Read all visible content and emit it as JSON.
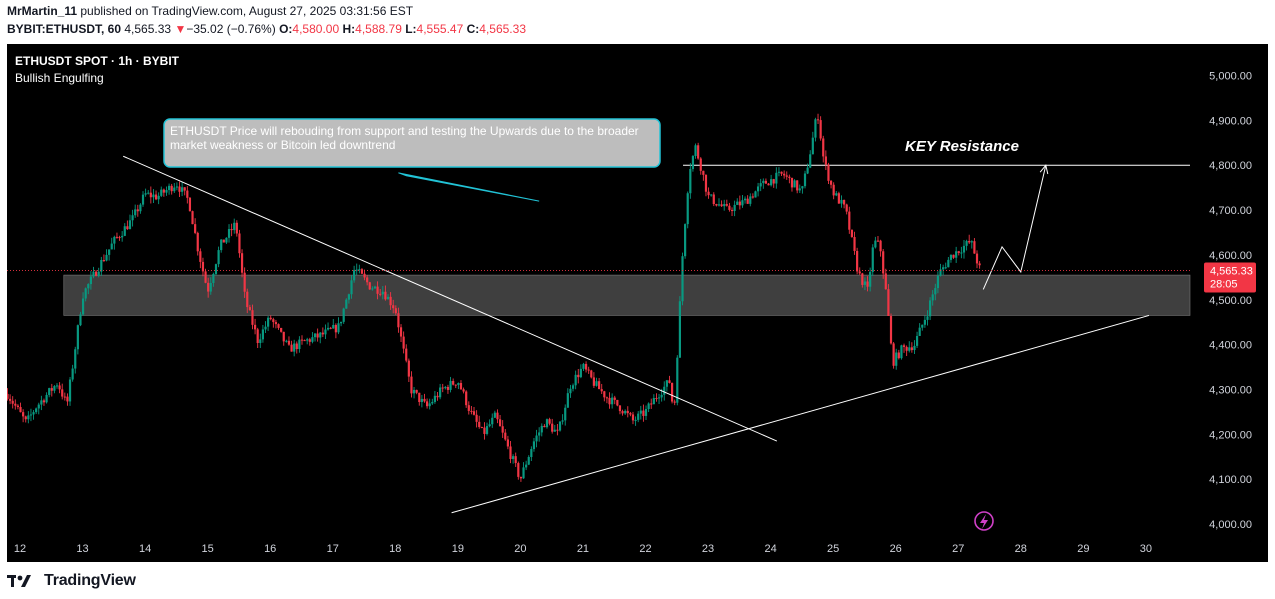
{
  "header": {
    "author": "MrMartin_11",
    "published_text": "published on TradingView.com, August 27, 2025 03:31:56 EST",
    "symbol_full": "BYBIT:ETHUSDT, 60",
    "last_price": "4,565.33",
    "change_arrow": "▼",
    "change": "−35.02 (−0.76%)",
    "o_label": "O:",
    "o_value": "4,580.00",
    "h_label": "H:",
    "h_value": "4,588.79",
    "l_label": "L:",
    "l_value": "4,555.47",
    "c_label": "C:",
    "c_value": "4,565.33"
  },
  "legend": {
    "symbol_title": "ETHUSDT SPOT · 1h · BYBIT",
    "indicator": "Bullish Engulfing"
  },
  "price_axis": {
    "ticks": [
      "5,000.00",
      "4,900.00",
      "4,800.00",
      "4,700.00",
      "4,600.00",
      "4,500.00",
      "4,400.00",
      "4,300.00",
      "4,200.00",
      "4,100.00",
      "4,000.00"
    ],
    "current_price_label": "4,565.33",
    "countdown_label": "28:05"
  },
  "time_axis": {
    "ticks": [
      "12",
      "13",
      "14",
      "15",
      "16",
      "17",
      "18",
      "19",
      "20",
      "21",
      "22",
      "23",
      "24",
      "25",
      "26",
      "27",
      "28",
      "29",
      "30"
    ]
  },
  "annotations": {
    "callout_text": "ETHUSDT Price will rebouding from support and testing the Upwards due to the broader market weakness or Bitcoin led downtrend",
    "key_resistance": "KEY Resistance"
  },
  "footer": {
    "brand": "TradingView"
  },
  "colors": {
    "up": "#089981",
    "down": "#f23645",
    "background": "#000000",
    "axis_text": "#d1d4dc",
    "accent_callout_border": "#22c3d6",
    "support_zone": "#5a5a5a"
  },
  "chart_data": {
    "type": "candlestick",
    "title": "ETHUSDT SPOT · 1h · BYBIT",
    "ylim": [
      3980,
      5030
    ],
    "x_unit": "days of August 2025",
    "xlim": [
      11.8,
      31.7
    ],
    "price_ticks": [
      5000,
      4900,
      4800,
      4700,
      4600,
      4500,
      4400,
      4300,
      4200,
      4100,
      4000
    ],
    "date_ticks": [
      12,
      13,
      14,
      15,
      16,
      17,
      18,
      19,
      20,
      21,
      22,
      23,
      24,
      25,
      26,
      27,
      28,
      29,
      30
    ],
    "last_price": 4565.33,
    "path": [
      [
        11.8,
        4290
      ],
      [
        12.1,
        4225
      ],
      [
        12.25,
        4260
      ],
      [
        12.6,
        4315
      ],
      [
        12.75,
        4265
      ],
      [
        12.85,
        4360
      ],
      [
        13.0,
        4510
      ],
      [
        13.2,
        4560
      ],
      [
        13.5,
        4630
      ],
      [
        13.8,
        4680
      ],
      [
        14.0,
        4735
      ],
      [
        14.2,
        4730
      ],
      [
        14.5,
        4760
      ],
      [
        14.7,
        4720
      ],
      [
        14.85,
        4610
      ],
      [
        15.0,
        4520
      ],
      [
        15.2,
        4620
      ],
      [
        15.45,
        4670
      ],
      [
        15.6,
        4500
      ],
      [
        15.8,
        4410
      ],
      [
        16.0,
        4460
      ],
      [
        16.3,
        4390
      ],
      [
        16.6,
        4410
      ],
      [
        16.8,
        4420
      ],
      [
        17.1,
        4440
      ],
      [
        17.35,
        4570
      ],
      [
        17.6,
        4530
      ],
      [
        17.8,
        4520
      ],
      [
        18.0,
        4480
      ],
      [
        18.25,
        4300
      ],
      [
        18.5,
        4260
      ],
      [
        18.75,
        4300
      ],
      [
        19.0,
        4320
      ],
      [
        19.2,
        4250
      ],
      [
        19.4,
        4200
      ],
      [
        19.6,
        4240
      ],
      [
        19.8,
        4170
      ],
      [
        20.0,
        4100
      ],
      [
        20.2,
        4180
      ],
      [
        20.4,
        4230
      ],
      [
        20.6,
        4200
      ],
      [
        20.8,
        4310
      ],
      [
        21.0,
        4350
      ],
      [
        21.2,
        4310
      ],
      [
        21.4,
        4280
      ],
      [
        21.6,
        4260
      ],
      [
        21.8,
        4230
      ],
      [
        22.0,
        4250
      ],
      [
        22.2,
        4290
      ],
      [
        22.4,
        4320
      ],
      [
        22.45,
        4230
      ],
      [
        22.6,
        4620
      ],
      [
        22.7,
        4790
      ],
      [
        22.8,
        4840
      ],
      [
        22.9,
        4790
      ],
      [
        23.0,
        4730
      ],
      [
        23.3,
        4700
      ],
      [
        23.6,
        4720
      ],
      [
        23.9,
        4760
      ],
      [
        24.2,
        4780
      ],
      [
        24.5,
        4740
      ],
      [
        24.65,
        4840
      ],
      [
        24.75,
        4920
      ],
      [
        24.85,
        4810
      ],
      [
        25.0,
        4740
      ],
      [
        25.2,
        4700
      ],
      [
        25.4,
        4560
      ],
      [
        25.55,
        4520
      ],
      [
        25.65,
        4630
      ],
      [
        25.75,
        4620
      ],
      [
        25.85,
        4510
      ],
      [
        25.95,
        4360
      ],
      [
        26.1,
        4390
      ],
      [
        26.3,
        4400
      ],
      [
        26.5,
        4470
      ],
      [
        26.7,
        4560
      ],
      [
        26.9,
        4600
      ],
      [
        27.0,
        4610
      ],
      [
        27.2,
        4630
      ],
      [
        27.35,
        4565.33
      ]
    ],
    "support_zone": {
      "low": 4465,
      "high": 4555,
      "x_start": 12.7,
      "x_end": 31.6
    },
    "key_resistance": {
      "price": 4800,
      "x_start": 22.6,
      "x_end": 31.6
    },
    "trendlines": [
      {
        "name": "descending",
        "x1": 13.65,
        "y1": 4820,
        "x2": 24.1,
        "y2": 4185
      },
      {
        "name": "ascending",
        "x1": 18.9,
        "y1": 4025,
        "x2": 30.05,
        "y2": 4465
      }
    ],
    "projection_path": [
      [
        27.4,
        4523
      ],
      [
        27.7,
        4618
      ],
      [
        28.0,
        4562
      ],
      [
        28.4,
        4800
      ]
    ],
    "callout_pointer": {
      "x1": 18.05,
      "y1": 4783,
      "x2": 20.3,
      "y2": 4720
    }
  }
}
